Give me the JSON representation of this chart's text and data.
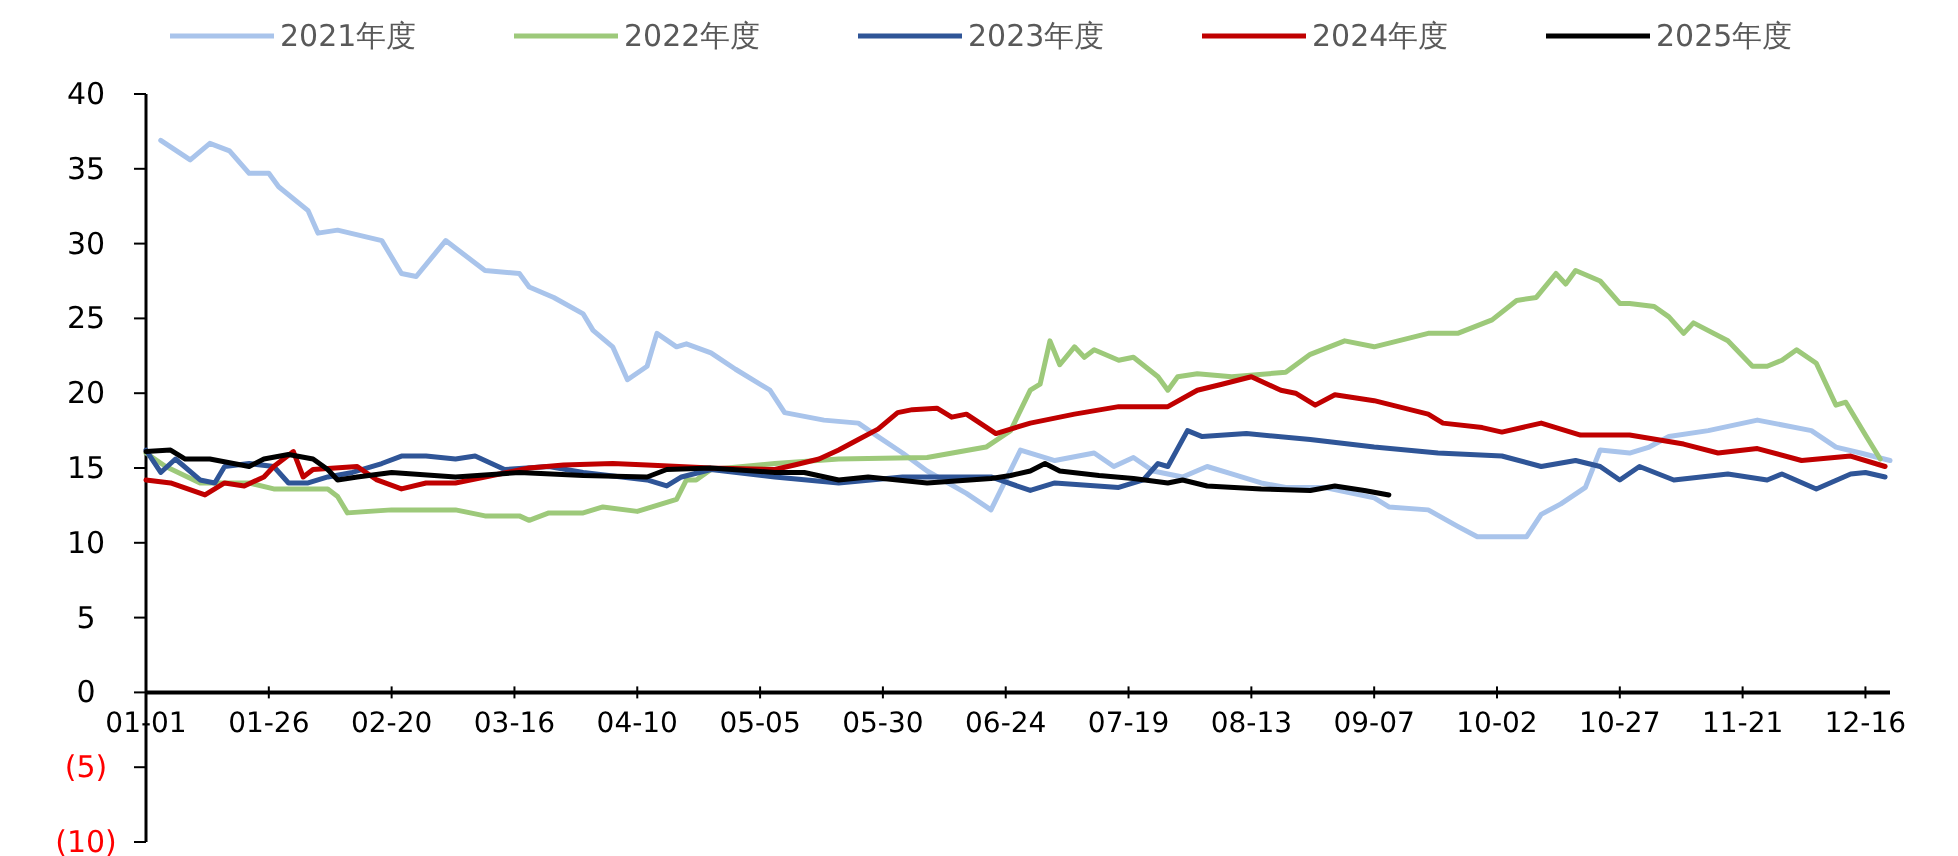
{
  "chart_data": {
    "type": "line",
    "legend": "top",
    "grid": false,
    "marker": "none",
    "line_style": "solid",
    "xlim": [
      "--01-01",
      "--12-21"
    ],
    "xticks": [
      {
        "value": "--01-01",
        "label": "01-01"
      },
      {
        "value": "--01-26",
        "label": "01-26"
      },
      {
        "value": "--02-20",
        "label": "02-20"
      },
      {
        "value": "--03-16",
        "label": "03-16"
      },
      {
        "value": "--04-10",
        "label": "04-10"
      },
      {
        "value": "--05-05",
        "label": "05-05"
      },
      {
        "value": "--05-30",
        "label": "05-30"
      },
      {
        "value": "--06-24",
        "label": "06-24"
      },
      {
        "value": "--07-19",
        "label": "07-19"
      },
      {
        "value": "--08-13",
        "label": "08-13"
      },
      {
        "value": "--09-07",
        "label": "09-07"
      },
      {
        "value": "--10-02",
        "label": "10-02"
      },
      {
        "value": "--10-27",
        "label": "10-27"
      },
      {
        "value": "--11-21",
        "label": "11-21"
      },
      {
        "value": "--12-16",
        "label": "12-16"
      }
    ],
    "ylim": [
      -10,
      40
    ],
    "yticks": [
      {
        "value": -10,
        "label": "(10)"
      },
      {
        "value": -5,
        "label": "(5)"
      },
      0,
      5,
      10,
      15,
      20,
      25,
      30,
      35,
      40
    ],
    "series": [
      {
        "name": "2021年度",
        "color": "#a9c4eb",
        "x": [
          "--01-04",
          "--01-10",
          "--01-14",
          "--01-18",
          "--01-22",
          "--01-26",
          "--01-28",
          "--02-03",
          "--02-05",
          "--02-09",
          "--02-18",
          "--02-22",
          "--02-25",
          "--03-02",
          "--03-10",
          "--03-17",
          "--03-19",
          "--03-24",
          "--03-30",
          "--04-01",
          "--04-05",
          "--04-08",
          "--04-12",
          "--04-14",
          "--04-18",
          "--04-20",
          "--04-25",
          "--04-30",
          "--05-07",
          "--05-10",
          "--05-18",
          "--05-25",
          "--05-29",
          "--06-03",
          "--06-08",
          "--06-16",
          "--06-21",
          "--06-27",
          "--07-04",
          "--07-12",
          "--07-16",
          "--07-20",
          "--07-24",
          "--07-30",
          "--08-04",
          "--08-09",
          "--08-15",
          "--08-20",
          "--08-28",
          "--09-07",
          "--09-10",
          "--09-18",
          "--09-24",
          "--09-28",
          "--10-08",
          "--10-11",
          "--10-15",
          "--10-20",
          "--10-23",
          "--10-29",
          "--11-02",
          "--11-06",
          "--11-14",
          "--11-24",
          "--12-05",
          "--12-10",
          "--12-15",
          "--12-21"
        ],
        "values": [
          36.9,
          35.6,
          36.7,
          36.2,
          34.7,
          34.7,
          33.8,
          32.2,
          30.7,
          30.9,
          30.2,
          28,
          27.8,
          30.2,
          28.2,
          28,
          27.1,
          26.4,
          25.3,
          24.2,
          23.1,
          20.9,
          21.8,
          24,
          23.1,
          23.3,
          22.7,
          21.6,
          20.2,
          18.7,
          18.2,
          18,
          17.1,
          16,
          14.8,
          13.3,
          12.2,
          16.2,
          15.5,
          16,
          15.1,
          15.7,
          14.8,
          14.4,
          15.1,
          14.6,
          14,
          13.7,
          13.7,
          13,
          12.4,
          12.2,
          11.1,
          10.4,
          10.4,
          11.9,
          12.6,
          13.7,
          16.2,
          16,
          16.4,
          17.1,
          17.5,
          18.2,
          17.5,
          16.4,
          16,
          15.5
        ]
      },
      {
        "name": "2022年度",
        "color": "#9dc97a",
        "x": [
          "--01-01",
          "--01-05",
          "--01-12",
          "--01-22",
          "--01-27",
          "--02-07",
          "--02-09",
          "--02-11",
          "--02-20",
          "--03-04",
          "--03-10",
          "--03-17",
          "--03-19",
          "--03-23",
          "--03-30",
          "--04-03",
          "--04-10",
          "--04-18",
          "--04-20",
          "--04-22",
          "--04-25",
          "--05-08",
          "--05-21",
          "--06-08",
          "--06-20",
          "--06-25",
          "--06-29",
          "--07-01",
          "--07-03",
          "--07-05",
          "--07-08",
          "--07-10",
          "--07-12",
          "--07-17",
          "--07-20",
          "--07-25",
          "--07-27",
          "--07-29",
          "--08-02",
          "--08-09",
          "--08-20",
          "--08-25",
          "--09-01",
          "--09-07",
          "--09-18",
          "--09-24",
          "--10-01",
          "--10-06",
          "--10-10",
          "--10-14",
          "--10-16",
          "--10-18",
          "--10-23",
          "--10-27",
          "--10-29",
          "--11-03",
          "--11-06",
          "--11-09",
          "--11-11",
          "--11-18",
          "--11-23",
          "--11-26",
          "--11-29",
          "--12-02",
          "--12-06",
          "--12-10",
          "--12-12",
          "--12-16",
          "--12-19"
        ],
        "values": [
          16,
          15.1,
          14,
          14,
          13.6,
          13.6,
          13.1,
          12,
          12.2,
          12.2,
          11.8,
          11.8,
          11.5,
          12,
          12,
          12.4,
          12.1,
          12.9,
          14.2,
          14.2,
          14.9,
          15.3,
          15.6,
          15.7,
          16.4,
          17.5,
          20.2,
          20.6,
          23.5,
          21.9,
          23.1,
          22.4,
          22.9,
          22.2,
          22.4,
          21.1,
          20.2,
          21.1,
          21.3,
          21.1,
          21.4,
          22.6,
          23.5,
          23.1,
          24,
          24,
          24.9,
          26.2,
          26.4,
          28,
          27.3,
          28.2,
          27.5,
          26,
          26,
          25.8,
          25.1,
          24,
          24.7,
          23.5,
          21.8,
          21.8,
          22.2,
          22.9,
          22,
          19.2,
          19.4,
          17.2,
          15.6
        ]
      },
      {
        "name": "2023年度",
        "color": "#2f5597",
        "x": [
          "--01-01",
          "--01-04",
          "--01-07",
          "--01-12",
          "--01-15",
          "--01-17",
          "--01-22",
          "--01-27",
          "--01-30",
          "--02-03",
          "--02-07",
          "--02-12",
          "--02-18",
          "--02-22",
          "--02-27",
          "--03-04",
          "--03-08",
          "--03-14",
          "--03-23",
          "--03-30",
          "--04-12",
          "--04-16",
          "--04-19",
          "--04-25",
          "--05-08",
          "--05-21",
          "--06-03",
          "--06-21",
          "--06-29",
          "--07-04",
          "--07-17",
          "--07-22",
          "--07-25",
          "--07-27",
          "--07-31",
          "--08-03",
          "--08-12",
          "--08-25",
          "--09-07",
          "--09-20",
          "--10-03",
          "--10-11",
          "--10-18",
          "--10-23",
          "--10-27",
          "--10-31",
          "--11-07",
          "--11-18",
          "--11-26",
          "--11-29",
          "--12-06",
          "--12-13",
          "--12-16",
          "--12-20"
        ],
        "values": [
          16.2,
          14.7,
          15.6,
          14.2,
          14,
          15.1,
          15.3,
          15.1,
          14,
          14,
          14.4,
          14.7,
          15.3,
          15.8,
          15.8,
          15.6,
          15.8,
          14.9,
          15.1,
          14.7,
          14.2,
          13.8,
          14.4,
          14.9,
          14.4,
          14,
          14.4,
          14.4,
          13.5,
          14,
          13.7,
          14.2,
          15.3,
          15.1,
          17.5,
          17.1,
          17.3,
          16.9,
          16.4,
          16,
          15.8,
          15.1,
          15.5,
          15.1,
          14.2,
          15.1,
          14.2,
          14.6,
          14.2,
          14.6,
          13.6,
          14.6,
          14.7,
          14.4
        ]
      },
      {
        "name": "2024年度",
        "color": "#c00000",
        "x": [
          "--01-01",
          "--01-06",
          "--01-13",
          "--01-17",
          "--01-21",
          "--01-25",
          "--01-27",
          "--01-31",
          "--02-02",
          "--02-04",
          "--02-13",
          "--02-17",
          "--02-22",
          "--02-27",
          "--03-04",
          "--03-10",
          "--03-19",
          "--03-26",
          "--04-05",
          "--04-12",
          "--04-25",
          "--05-08",
          "--05-12",
          "--05-17",
          "--05-21",
          "--05-25",
          "--05-29",
          "--06-02",
          "--06-05",
          "--06-10",
          "--06-13",
          "--06-16",
          "--06-22",
          "--06-29",
          "--07-08",
          "--07-17",
          "--07-27",
          "--08-02",
          "--08-07",
          "--08-13",
          "--08-19",
          "--08-22",
          "--08-26",
          "--08-30",
          "--09-07",
          "--09-18",
          "--09-21",
          "--09-29",
          "--10-03",
          "--10-11",
          "--10-19",
          "--10-29",
          "--11-09",
          "--11-16",
          "--11-24",
          "--12-03",
          "--12-13",
          "--12-20"
        ],
        "values": [
          14.2,
          14,
          13.2,
          14,
          13.8,
          14.4,
          15.1,
          16.1,
          14.4,
          14.9,
          15.1,
          14.2,
          13.6,
          14,
          14,
          14.4,
          15,
          15.2,
          15.3,
          15.2,
          15,
          14.9,
          15.2,
          15.6,
          16.2,
          16.9,
          17.6,
          18.7,
          18.9,
          19,
          18.4,
          18.6,
          17.3,
          18,
          18.6,
          19.1,
          19.1,
          20.2,
          20.6,
          21.1,
          20.2,
          20,
          19.2,
          19.9,
          19.5,
          18.6,
          18,
          17.7,
          17.4,
          18,
          17.2,
          17.2,
          16.6,
          16,
          16.3,
          15.5,
          15.8,
          15.1
        ]
      },
      {
        "name": "2025年度",
        "color": "#000000",
        "x": [
          "--01-01",
          "--01-06",
          "--01-09",
          "--01-14",
          "--01-22",
          "--01-25",
          "--01-30",
          "--02-04",
          "--02-07",
          "--02-09",
          "--02-13",
          "--02-20",
          "--03-04",
          "--03-17",
          "--03-30",
          "--04-12",
          "--04-16",
          "--04-25",
          "--05-08",
          "--05-14",
          "--05-21",
          "--05-27",
          "--06-08",
          "--06-21",
          "--06-25",
          "--06-29",
          "--07-02",
          "--07-05",
          "--07-13",
          "--07-20",
          "--07-27",
          "--07-30",
          "--08-04",
          "--08-15",
          "--08-25",
          "--08-30",
          "--09-05",
          "--09-10"
        ],
        "values": [
          16.1,
          16.2,
          15.6,
          15.6,
          15.1,
          15.6,
          15.9,
          15.6,
          14.9,
          14.2,
          14.4,
          14.7,
          14.4,
          14.7,
          14.5,
          14.4,
          14.9,
          15,
          14.7,
          14.7,
          14.2,
          14.4,
          14,
          14.3,
          14.5,
          14.8,
          15.3,
          14.8,
          14.5,
          14.3,
          14,
          14.2,
          13.8,
          13.6,
          13.5,
          13.8,
          13.5,
          13.2
        ]
      }
    ]
  }
}
